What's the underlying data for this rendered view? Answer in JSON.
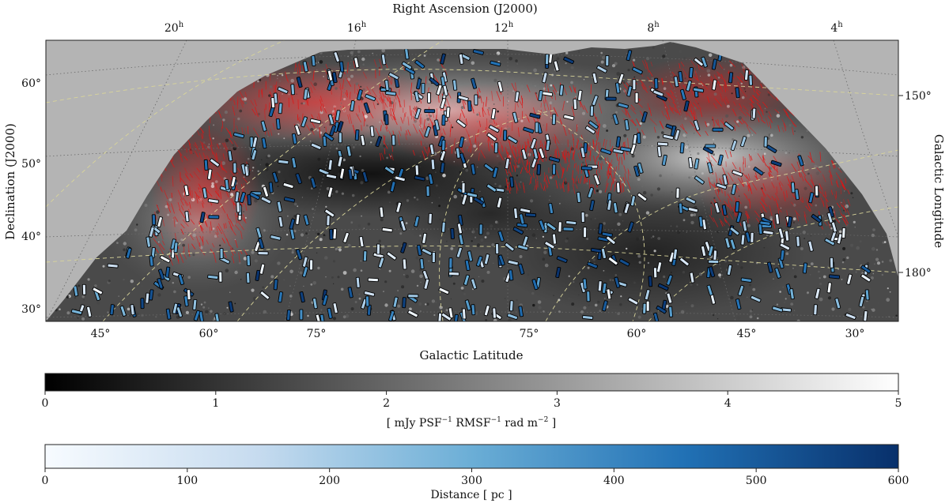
{
  "chart_data": {
    "type": "sky-map",
    "map": {
      "top_axis": {
        "label": "Right Ascension (J2000)",
        "ticks": [
          {
            "text": "20",
            "sup": "h"
          },
          {
            "text": "16",
            "sup": "h"
          },
          {
            "text": "12",
            "sup": "h"
          },
          {
            "text": "8",
            "sup": "h"
          },
          {
            "text": "4",
            "sup": "h"
          }
        ]
      },
      "left_axis": {
        "label": "Declination (J2000)",
        "ticks": [
          "60°",
          "50°",
          "40°",
          "30°"
        ],
        "values": [
          60,
          50,
          40,
          30
        ],
        "range": [
          28,
          66
        ]
      },
      "right_axis": {
        "label": "Galactic Longitude",
        "ticks": [
          "150°",
          "180°"
        ]
      },
      "bottom_axis": {
        "label": "Galactic Latitude",
        "ticks": [
          "45°",
          "60°",
          "75°",
          "75°",
          "60°",
          "45°",
          "30°"
        ]
      },
      "layers": {
        "background_image": "polarized intensity (grayscale)",
        "red_vectors": "plane-of-sky magnetic field orientation",
        "star_bars": "stellar polarization, colored by distance"
      },
      "grid": true
    },
    "colorbars": [
      {
        "name": "intensity",
        "colormap": "gray",
        "range": [
          0,
          5
        ],
        "ticks": [
          "0",
          "1",
          "2",
          "3",
          "4",
          "5"
        ],
        "label_parts": [
          "[ mJy PSF",
          "−1",
          " RMSF",
          "−1",
          " rad m",
          "−2",
          " ]"
        ]
      },
      {
        "name": "distance",
        "colormap": "Blues",
        "range": [
          0,
          600
        ],
        "ticks": [
          "0",
          "100",
          "200",
          "300",
          "400",
          "500",
          "600"
        ],
        "label": "Distance [ pc ]"
      }
    ]
  },
  "colors": {
    "background": "#b4b4b4",
    "vector": "#e01515",
    "cmap_blues": [
      "#f7fbff",
      "#c6dbef",
      "#6baed6",
      "#2171b5",
      "#08306b"
    ],
    "grid": "#6a6a6a",
    "galactic_grid": "#d8d49a"
  }
}
